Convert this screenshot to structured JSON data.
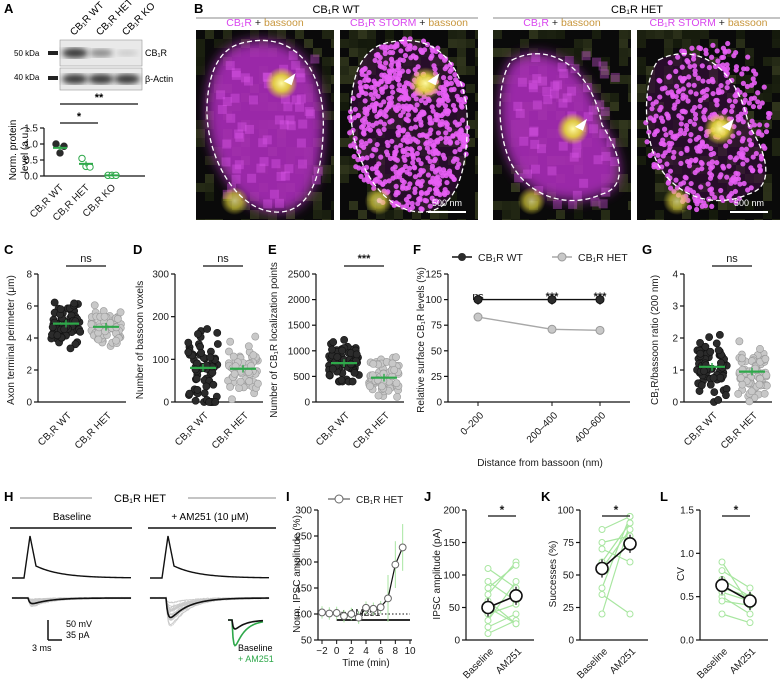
{
  "colors": {
    "cb1r": "#d946ef",
    "bassoon": "#c8963c",
    "wt_dot": "#2b2b2b",
    "het_dot": "#c8c8c8",
    "green": "#2ea84a",
    "light_green": "#a8e6a0"
  },
  "panel_labels": [
    "A",
    "B",
    "C",
    "D",
    "E",
    "F",
    "G",
    "H",
    "I",
    "J",
    "K",
    "L"
  ],
  "panelA": {
    "blot_lanes": [
      "CB₁R WT",
      "CB₁R HET",
      "CB₁R KO"
    ],
    "markers": [
      "50 kDa",
      "40 kDa"
    ],
    "bands": [
      "CB₁R",
      "β-Actin"
    ],
    "sig": [
      "**",
      "*"
    ],
    "ylabel": "Norm. protein\nlevel (a.u.)",
    "yticks": [
      "0.0",
      "0.5",
      "1.0",
      "1.5"
    ],
    "xticks": [
      "CB₁R WT",
      "CB₁R HET",
      "CB₁R KO"
    ]
  },
  "panelB": {
    "group_titles": [
      "CB₁R WT",
      "CB₁R HET"
    ],
    "img_titles": [
      {
        "a": "CB₁R",
        "plus": " + ",
        "b": "bassoon"
      },
      {
        "a": "CB₁R STORM",
        "plus": " + ",
        "b": "bassoon"
      },
      {
        "a": "CB₁R",
        "plus": " + ",
        "b": "bassoon"
      },
      {
        "a": "CB₁R STORM",
        "plus": " + ",
        "b": "bassoon"
      }
    ],
    "scale": "500 nm"
  },
  "panelC": {
    "ylabel": "Axon terminal perimeter (μm)",
    "yticks": [
      "0",
      "2",
      "4",
      "6",
      "8"
    ],
    "sig": "ns",
    "xticks": [
      "CB₁R WT",
      "CB₁R HET"
    ]
  },
  "panelD": {
    "ylabel": "Number of bassoon voxels",
    "yticks": [
      "0",
      "100",
      "200",
      "300"
    ],
    "sig": "ns",
    "xticks": [
      "CB₁R WT",
      "CB₁R HET"
    ]
  },
  "panelE": {
    "ylabel": "Number of CB₁R localization points",
    "yticks": [
      "0",
      "500",
      "1000",
      "1500",
      "2000",
      "2500"
    ],
    "sig": "***",
    "xticks": [
      "CB₁R WT",
      "CB₁R HET"
    ]
  },
  "panelF": {
    "legend": [
      "CB₁R WT",
      "CB₁R HET"
    ],
    "ylabel": "Relative surface CB₁R levels (%)",
    "xlabel": "Distance from bassoon (nm)",
    "yticks": [
      "0",
      "25",
      "50",
      "75",
      "100",
      "125"
    ],
    "xticks": [
      "0–200",
      "200–400",
      "400–600"
    ],
    "sig": [
      "ns",
      "***",
      "***"
    ]
  },
  "panelG": {
    "ylabel": "CB₁R/bassoon ratio (200 nm)",
    "yticks": [
      "0",
      "1",
      "2",
      "3",
      "4"
    ],
    "sig": "ns",
    "xticks": [
      "CB₁R WT",
      "CB₁R HET"
    ]
  },
  "panelH": {
    "title": "CB₁R HET",
    "conds": [
      "Baseline",
      "+ AM251 (10 μM)"
    ],
    "scale_v": "50 mV",
    "scale_i": "35 pA",
    "scale_t": "3 ms",
    "inset": [
      "Baseline",
      "+ AM251"
    ]
  },
  "panelI": {
    "legend": "CB₁R  HET",
    "ylabel": "Norm. IPSC amplitude (%)",
    "xlabel": "Time (min)",
    "yticks": [
      "50",
      "100",
      "150",
      "200",
      "250",
      "300"
    ],
    "xticks": [
      "−2",
      "0",
      "2",
      "4",
      "6",
      "8",
      "10"
    ],
    "drug": "+ AM251"
  },
  "panelJ": {
    "ylabel": "IPSC amplitude (pA)",
    "yticks": [
      "0",
      "50",
      "100",
      "150",
      "200"
    ],
    "sig": "*",
    "xticks": [
      "Baseline",
      "AM251"
    ]
  },
  "panelK": {
    "ylabel": "Successes (%)",
    "yticks": [
      "0",
      "25",
      "50",
      "75",
      "100"
    ],
    "sig": "*",
    "xticks": [
      "Baseline",
      "AM251"
    ]
  },
  "panelL": {
    "ylabel": "CV",
    "yticks": [
      "0.0",
      "0.5",
      "1.0",
      "1.5"
    ],
    "sig": "*",
    "xticks": [
      "Baseline",
      "AM251"
    ]
  },
  "chart_data": [
    {
      "panel": "A",
      "type": "scatter",
      "categories": [
        "CB₁R WT",
        "CB₁R HET",
        "CB₁R KO"
      ],
      "means": [
        0.88,
        0.38,
        0.02
      ],
      "points": [
        [
          1.0,
          0.72,
          0.93
        ],
        [
          0.55,
          0.3,
          0.28
        ],
        [
          0.02,
          0.02,
          0.02
        ]
      ],
      "ylim": [
        0,
        1.5
      ]
    },
    {
      "panel": "C",
      "type": "scatter",
      "categories": [
        "CB₁R WT",
        "CB₁R HET"
      ],
      "means": [
        4.9,
        4.7
      ],
      "range": [
        [
          3.0,
          7.3
        ],
        [
          3.2,
          6.5
        ]
      ],
      "ylim": [
        0,
        8
      ]
    },
    {
      "panel": "D",
      "type": "scatter",
      "categories": [
        "CB₁R WT",
        "CB₁R HET"
      ],
      "means": [
        80,
        78
      ],
      "range": [
        [
          0,
          290
        ],
        [
          0,
          195
        ]
      ],
      "ylim": [
        0,
        300
      ]
    },
    {
      "panel": "E",
      "type": "scatter",
      "categories": [
        "CB₁R WT",
        "CB₁R HET"
      ],
      "means": [
        760,
        475
      ],
      "range": [
        [
          400,
          1650
        ],
        [
          100,
          1250
        ]
      ],
      "ylim": [
        0,
        2500
      ]
    },
    {
      "panel": "F",
      "type": "line",
      "x": [
        "0–200",
        "200–400",
        "400–600"
      ],
      "series": [
        {
          "name": "CB₁R WT",
          "values": [
            100,
            100,
            100
          ]
        },
        {
          "name": "CB₁R HET",
          "values": [
            83,
            71,
            70
          ]
        }
      ],
      "ylim": [
        0,
        125
      ]
    },
    {
      "panel": "G",
      "type": "scatter",
      "categories": [
        "CB₁R WT",
        "CB₁R HET"
      ],
      "means": [
        1.1,
        0.95
      ],
      "range": [
        [
          0,
          2.9
        ],
        [
          0,
          2.7
        ]
      ],
      "ylim": [
        0,
        4
      ]
    },
    {
      "panel": "I",
      "type": "line",
      "x": [
        -2,
        -1,
        0,
        1,
        2,
        3,
        4,
        5,
        6,
        7,
        8,
        9
      ],
      "series": [
        {
          "name": "CB₁R  HET",
          "values": [
            103,
            101,
            102,
            96,
            100,
            93,
            112,
            110,
            113,
            130,
            195,
            228
          ]
        }
      ],
      "ylim": [
        50,
        300
      ]
    },
    {
      "panel": "J",
      "type": "scatter",
      "categories": [
        "Baseline",
        "AM251"
      ],
      "means": [
        50,
        68
      ],
      "ylim": [
        0,
        200
      ]
    },
    {
      "panel": "K",
      "type": "scatter",
      "categories": [
        "Baseline",
        "AM251"
      ],
      "means": [
        55,
        74
      ],
      "ylim": [
        0,
        100
      ]
    },
    {
      "panel": "L",
      "type": "scatter",
      "categories": [
        "Baseline",
        "AM251"
      ],
      "means": [
        0.63,
        0.45
      ],
      "ylim": [
        0,
        1.5
      ]
    }
  ]
}
